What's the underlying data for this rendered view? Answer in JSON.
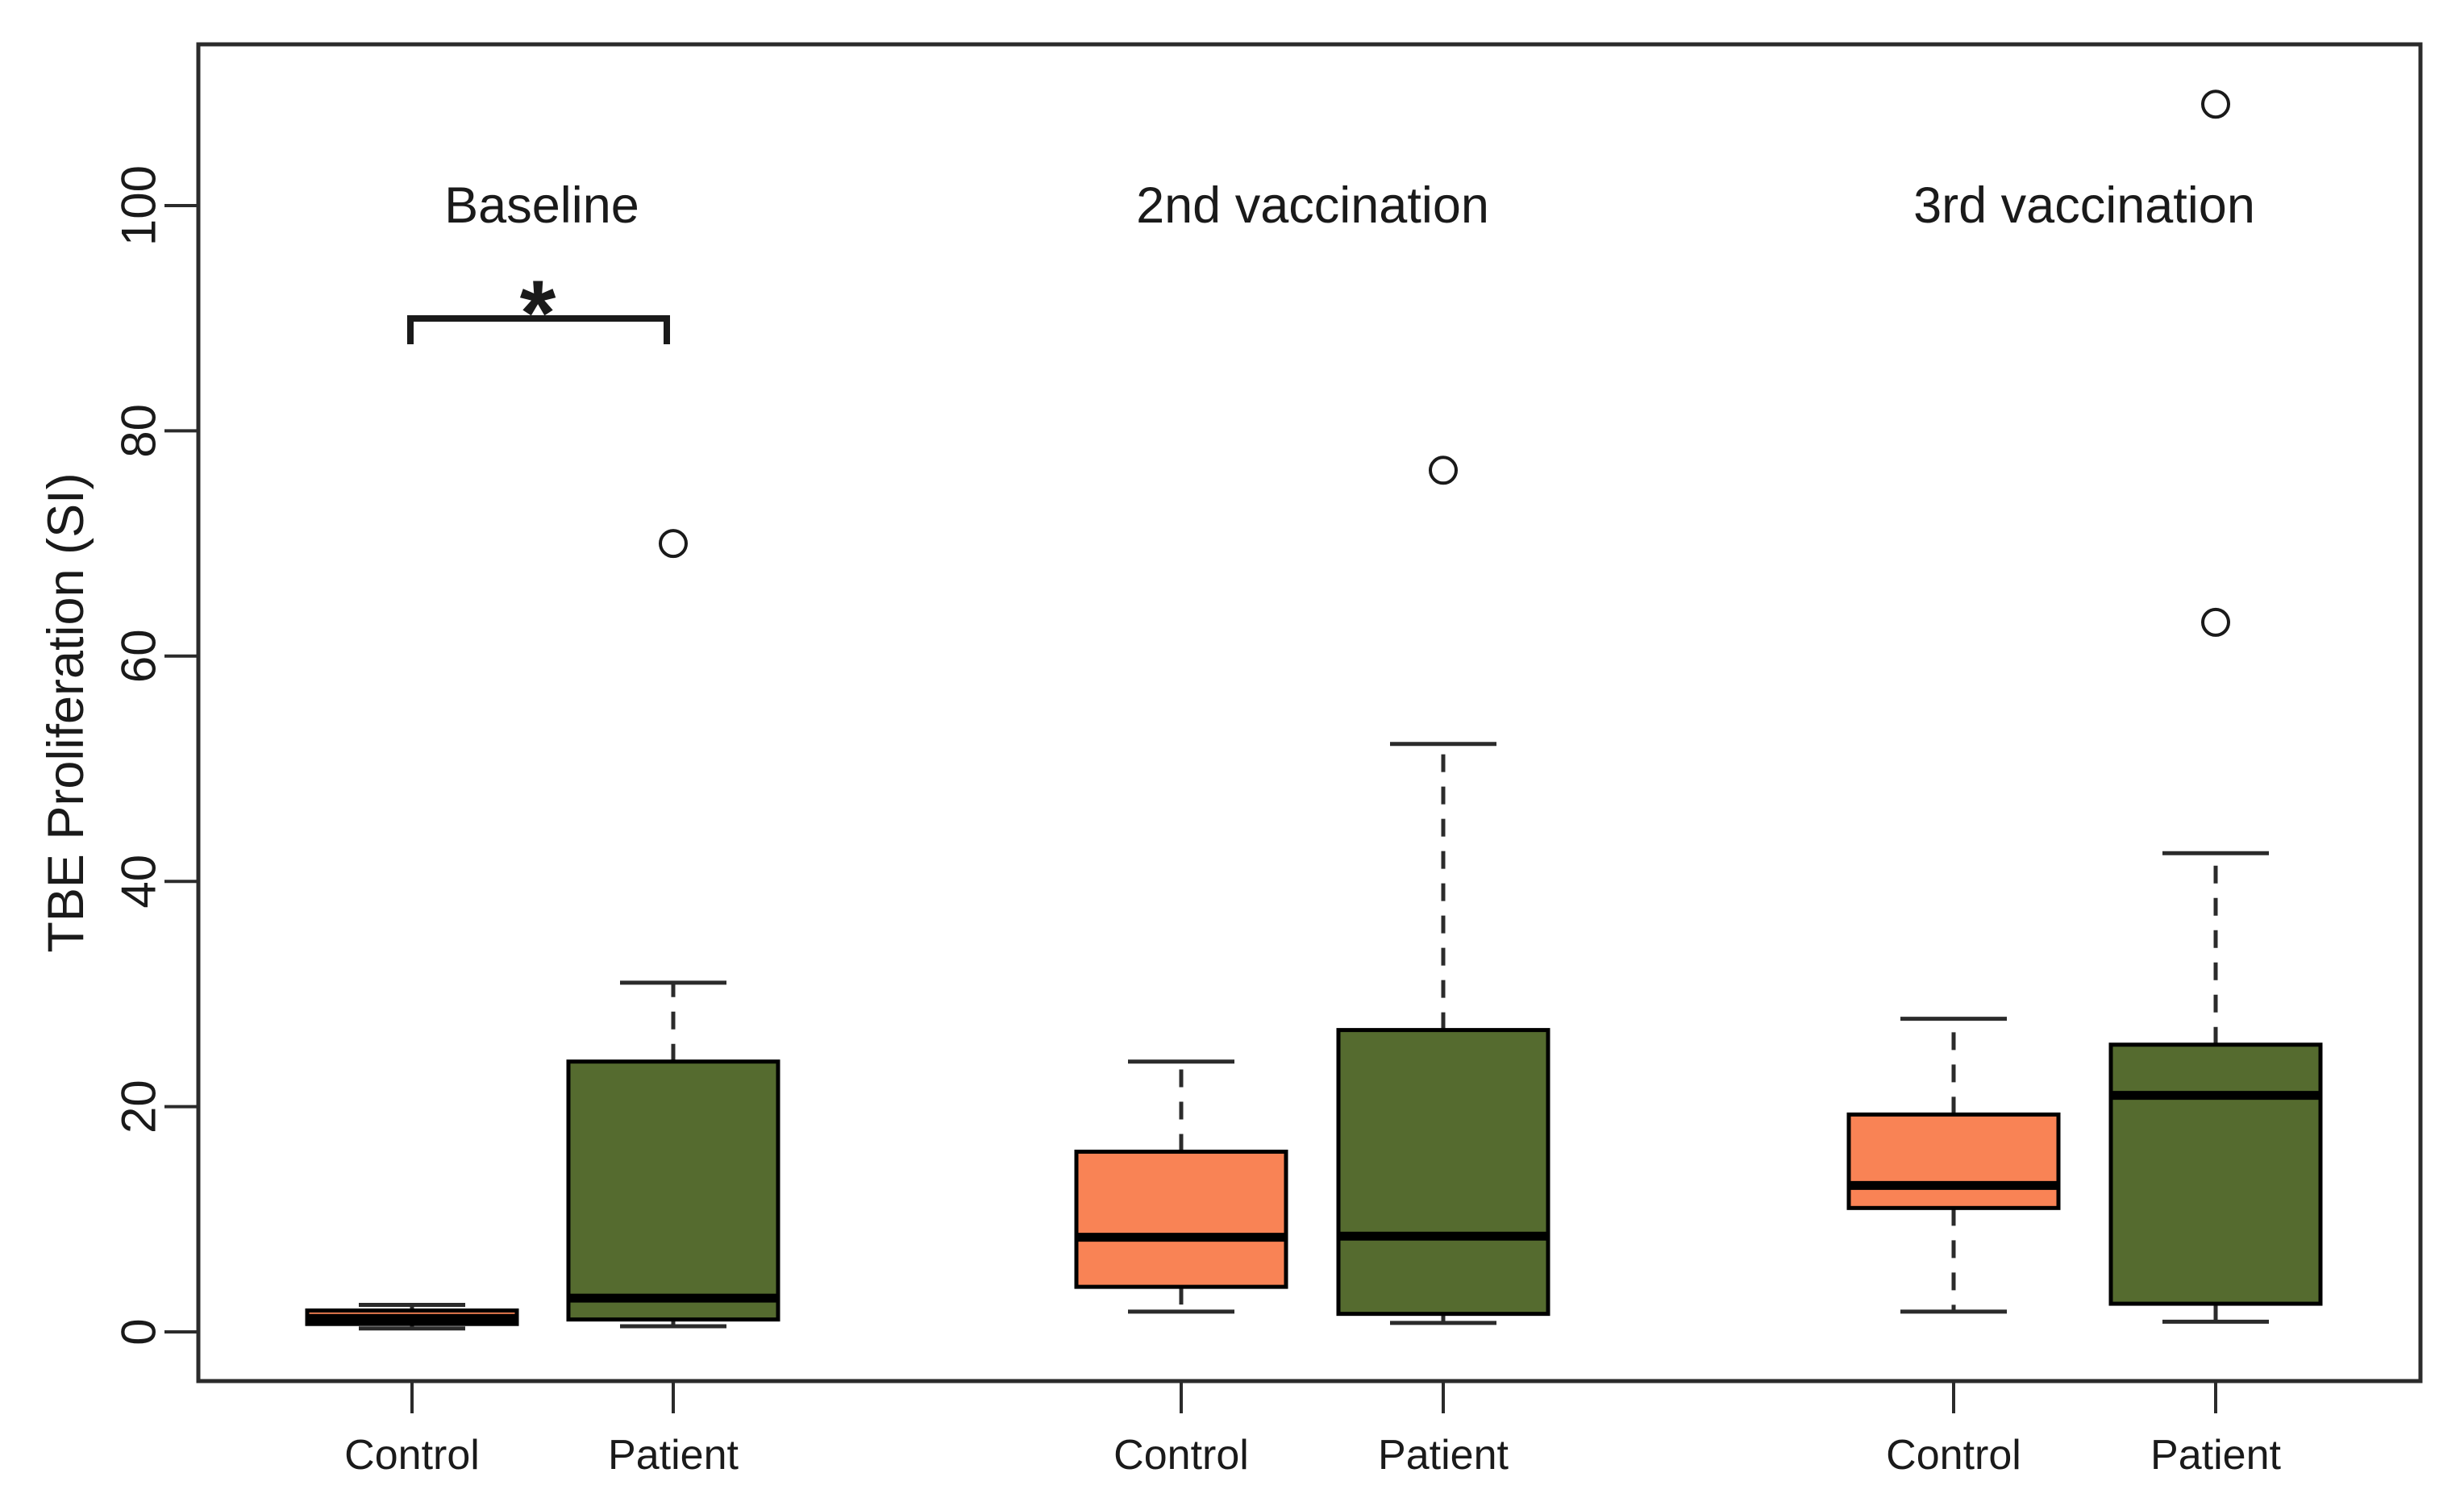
{
  "figure": {
    "background": "#ffffff",
    "text_color": "#1a1a1a",
    "frame_color": "#2b2b2b",
    "y_axis": {
      "label": "TBE Proliferation (SI)",
      "ticks": [
        0,
        20,
        40,
        60,
        80,
        100
      ]
    },
    "x_axis": {
      "pair_labels": [
        "Control",
        "Patient"
      ]
    },
    "colors": {
      "control_fill": "#F98355",
      "patient_fill": "#556B2F",
      "box_stroke": "#000000",
      "median_stroke": "#000000",
      "outlier_stroke": "#1a1a1a"
    },
    "significance": {
      "label": "*",
      "group": "Baseline",
      "between": [
        "Control",
        "Patient"
      ],
      "bar_value": 90
    }
  },
  "chart_data": {
    "type": "boxplot",
    "title": "",
    "xlabel": "",
    "ylabel": "TBE Proliferation (SI)",
    "ylim": [
      -4.4,
      114.3
    ],
    "yticks": [
      0,
      20,
      40,
      60,
      80,
      100
    ],
    "grid": false,
    "legend": "none",
    "series": [
      {
        "name": "Control",
        "color": "#F98355"
      },
      {
        "name": "Patient",
        "color": "#556B2F"
      }
    ],
    "groups": [
      {
        "label": "Baseline",
        "boxes": [
          {
            "series": "Control",
            "min": 0.3,
            "q1": 0.7,
            "median": 1.2,
            "q3": 1.9,
            "max": 2.4,
            "outliers": []
          },
          {
            "series": "Patient",
            "min": 0.5,
            "q1": 1.1,
            "median": 3.0,
            "q3": 24.0,
            "max": 31.0,
            "outliers": [
              70
            ]
          }
        ]
      },
      {
        "label": "2nd vaccination",
        "boxes": [
          {
            "series": "Control",
            "min": 1.8,
            "q1": 4.0,
            "median": 8.4,
            "q3": 16.0,
            "max": 24.0,
            "outliers": []
          },
          {
            "series": "Patient",
            "min": 0.8,
            "q1": 1.6,
            "median": 8.5,
            "q3": 26.8,
            "max": 52.2,
            "outliers": [
              76.5
            ]
          }
        ]
      },
      {
        "label": "3rd vaccination",
        "boxes": [
          {
            "series": "Control",
            "min": 1.8,
            "q1": 11.0,
            "median": 13.0,
            "q3": 19.3,
            "max": 27.8,
            "outliers": []
          },
          {
            "series": "Patient",
            "min": 0.9,
            "q1": 2.5,
            "median": 21.0,
            "q3": 25.5,
            "max": 42.5,
            "outliers": [
              63,
              109
            ]
          }
        ]
      }
    ]
  }
}
